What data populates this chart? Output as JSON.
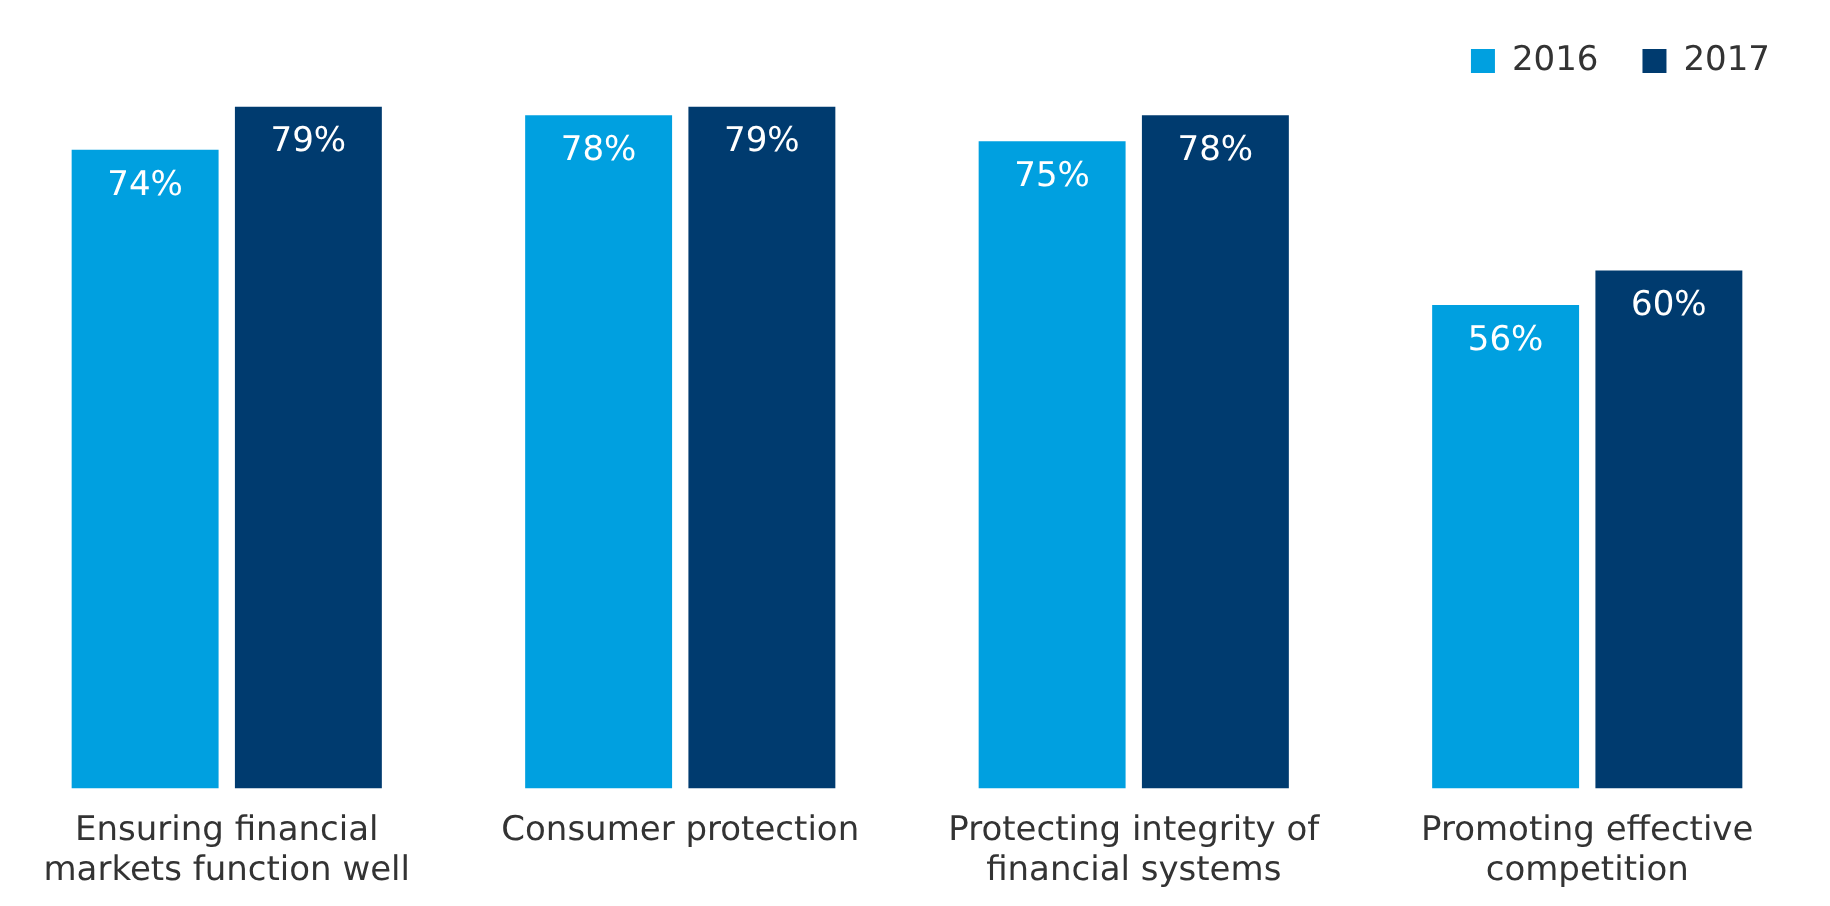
{
  "chart_data": {
    "type": "bar",
    "categories": [
      "Ensuring financial markets function well",
      "Consumer protection",
      "Protecting integrity of financial systems",
      "Promoting effective competition"
    ],
    "series": [
      {
        "name": "2016",
        "color": "#00a0e0",
        "values": [
          74,
          78,
          75,
          56
        ],
        "value_labels": [
          "74%",
          "78%",
          "75%",
          "56%"
        ]
      },
      {
        "name": "2017",
        "color": "#003b6f",
        "values": [
          79,
          79,
          78,
          60
        ],
        "value_labels": [
          "79%",
          "79%",
          "78%",
          "60%"
        ]
      }
    ],
    "legend": "top right"
  }
}
